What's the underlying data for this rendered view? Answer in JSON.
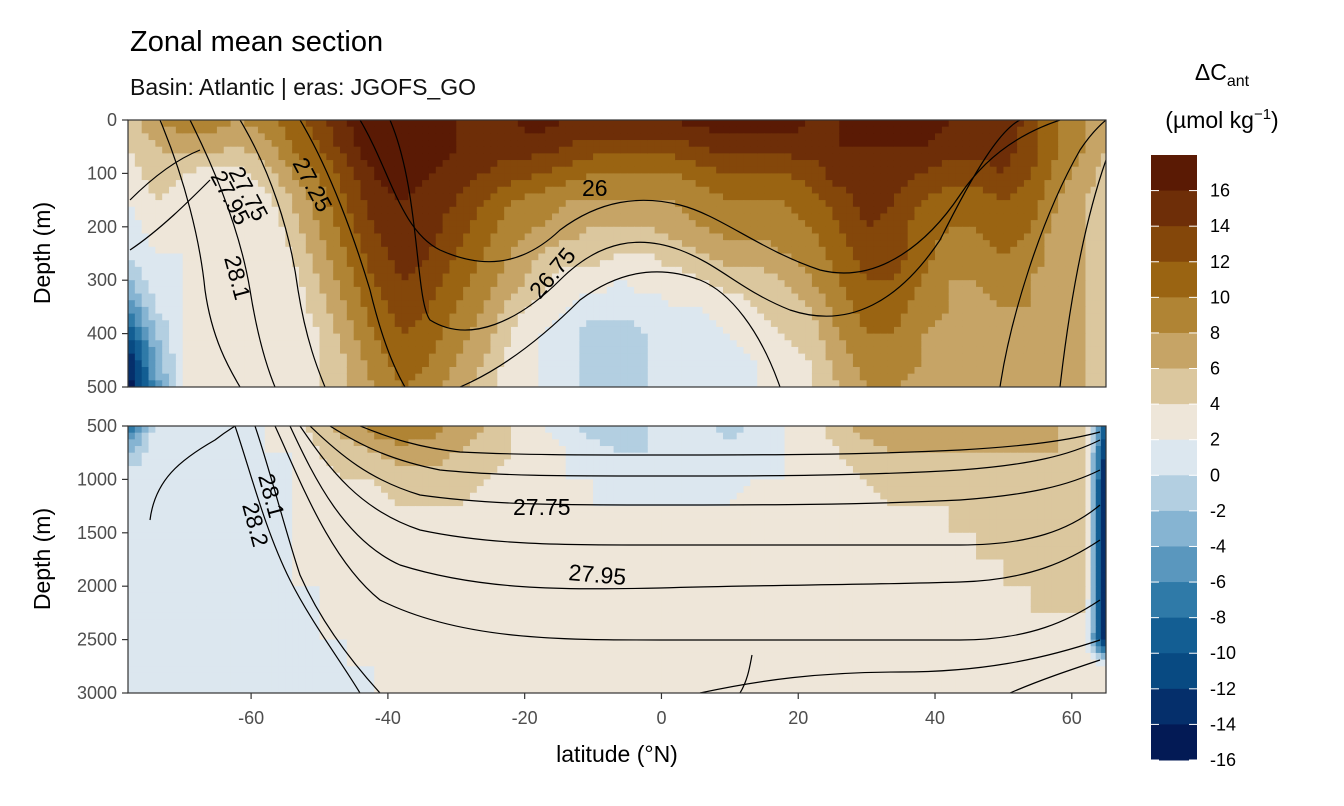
{
  "chart_data": {
    "type": "heatmap",
    "title": "Zonal mean section",
    "subtitle": "Basin: Atlantic | eras: JGOFS_GO",
    "xlabel": "latitude (°N)",
    "ylabel": "Depth (m)",
    "xlim": [
      -78,
      65
    ],
    "x_ticks": [
      -60,
      -40,
      -20,
      0,
      20,
      40,
      60
    ],
    "panels": [
      {
        "ylim": [
          0,
          500
        ],
        "y_ticks": [
          0,
          100,
          200,
          300,
          400,
          500
        ]
      },
      {
        "ylim": [
          500,
          3000
        ],
        "y_ticks": [
          500,
          1000,
          1500,
          2000,
          2500,
          3000
        ]
      }
    ],
    "legend": {
      "title": "ΔC",
      "title_sub": "ant",
      "unit_prefix": "(µmol kg",
      "unit_sup": "−1",
      "unit_suffix": ")",
      "labels": [
        "16",
        "14",
        "12",
        "10",
        "8",
        "6",
        "4",
        "2",
        "0",
        "-2",
        "-4",
        "-6",
        "-8",
        "-10",
        "-12",
        "-14",
        "-16"
      ],
      "colors": [
        "#5a1a04",
        "#6e2e08",
        "#84470a",
        "#9a6412",
        "#b08434",
        "#c6a466",
        "#dbc79e",
        "#eee6d9",
        "#dce7ef",
        "#b3cfe1",
        "#86b4d2",
        "#5a97be",
        "#2f7aa8",
        "#135e93",
        "#084a82",
        "#052f6b",
        "#031a55"
      ]
    },
    "isopycnal_labels": [
      "27.75",
      "27.95",
      "27.25",
      "26",
      "26.75",
      "28.1",
      "27.75",
      "27.95",
      "28.1",
      "28.2"
    ],
    "field_grid_top": {
      "lat": [
        -78,
        -74,
        -70,
        -66,
        -62,
        -58,
        -54,
        -50,
        -46,
        -42,
        -38,
        -34,
        -30,
        -26,
        -22,
        -18,
        -14,
        -10,
        -6,
        -2,
        2,
        6,
        10,
        14,
        18,
        22,
        26,
        30,
        34,
        38,
        42,
        46,
        50,
        54,
        58,
        62,
        65
      ],
      "depth": [
        0,
        50,
        100,
        150,
        200,
        250,
        300,
        350,
        400,
        450,
        500
      ],
      "values": [
        [
          5,
          8,
          9,
          9,
          8,
          9,
          11,
          13,
          16,
          18,
          18,
          17,
          16,
          16,
          16,
          17,
          16,
          16,
          16,
          16,
          16,
          17,
          17,
          17,
          17,
          16,
          16,
          16,
          17,
          17,
          16,
          16,
          16,
          13,
          10,
          8,
          7
        ],
        [
          4,
          6,
          7,
          7,
          6,
          7,
          10,
          12,
          15,
          18,
          18,
          17,
          16,
          15,
          15,
          15,
          14,
          13,
          13,
          13,
          13,
          14,
          15,
          15,
          15,
          15,
          16,
          16,
          16,
          16,
          15,
          15,
          15,
          13,
          10,
          8,
          6
        ],
        [
          3,
          5,
          4,
          3,
          3,
          5,
          8,
          10,
          13,
          16,
          17,
          16,
          15,
          14,
          13,
          12,
          11,
          10,
          10,
          10,
          10,
          11,
          12,
          12,
          12,
          13,
          15,
          16,
          15,
          14,
          13,
          13,
          14,
          12,
          9,
          7,
          5
        ],
        [
          2,
          4,
          3,
          2,
          2,
          3,
          6,
          9,
          12,
          15,
          16,
          15,
          14,
          12,
          10,
          9,
          8,
          8,
          8,
          8,
          8,
          9,
          10,
          10,
          10,
          11,
          13,
          15,
          14,
          12,
          11,
          11,
          12,
          11,
          8,
          6,
          5
        ],
        [
          1,
          3,
          2,
          2,
          2,
          2,
          5,
          8,
          11,
          14,
          16,
          15,
          13,
          11,
          9,
          8,
          7,
          6,
          6,
          6,
          7,
          8,
          9,
          9,
          9,
          10,
          12,
          14,
          13,
          11,
          10,
          10,
          11,
          10,
          7,
          6,
          5
        ],
        [
          0,
          2,
          2,
          2,
          2,
          2,
          4,
          7,
          10,
          13,
          15,
          14,
          12,
          10,
          8,
          6,
          5,
          5,
          4,
          4,
          5,
          6,
          7,
          7,
          8,
          9,
          11,
          13,
          13,
          11,
          9,
          9,
          10,
          9,
          7,
          6,
          5
        ],
        [
          -2,
          1,
          2,
          2,
          2,
          2,
          3,
          6,
          9,
          12,
          14,
          13,
          11,
          9,
          7,
          5,
          3,
          3,
          2,
          3,
          3,
          4,
          5,
          5,
          6,
          8,
          10,
          12,
          12,
          10,
          8,
          8,
          9,
          8,
          7,
          6,
          5
        ],
        [
          -6,
          0,
          2,
          2,
          2,
          2,
          3,
          5,
          8,
          11,
          13,
          12,
          10,
          8,
          5,
          3,
          2,
          1,
          1,
          1,
          2,
          2,
          3,
          4,
          5,
          6,
          9,
          11,
          11,
          9,
          8,
          7,
          8,
          8,
          7,
          6,
          5
        ],
        [
          -10,
          -2,
          2,
          2,
          2,
          2,
          2,
          4,
          7,
          10,
          12,
          11,
          9,
          7,
          4,
          2,
          1,
          -1,
          -1,
          0,
          1,
          1,
          2,
          3,
          4,
          5,
          8,
          10,
          10,
          8,
          7,
          7,
          7,
          7,
          6,
          6,
          5
        ],
        [
          -14,
          -4,
          2,
          2,
          2,
          2,
          2,
          4,
          6,
          9,
          11,
          10,
          8,
          6,
          3,
          2,
          1,
          -1,
          -1,
          0,
          0,
          1,
          1,
          2,
          3,
          4,
          7,
          9,
          9,
          8,
          7,
          7,
          7,
          7,
          6,
          6,
          5
        ],
        [
          -16,
          -5,
          2,
          2,
          2,
          2,
          2,
          4,
          6,
          8,
          10,
          9,
          7,
          5,
          3,
          2,
          1,
          -1,
          -1,
          0,
          0,
          0,
          1,
          2,
          3,
          4,
          6,
          8,
          8,
          7,
          7,
          6,
          7,
          7,
          6,
          6,
          5
        ]
      ]
    },
    "field_grid_bottom": {
      "lat": [
        -78,
        -74,
        -70,
        -66,
        -62,
        -58,
        -54,
        -50,
        -46,
        -42,
        -38,
        -34,
        -30,
        -26,
        -22,
        -18,
        -14,
        -10,
        -6,
        -2,
        2,
        6,
        10,
        14,
        18,
        22,
        26,
        30,
        34,
        38,
        42,
        46,
        50,
        54,
        58,
        62,
        65
      ],
      "depth": [
        500,
        750,
        1000,
        1250,
        1500,
        1750,
        2000,
        2250,
        2500,
        2750,
        3000
      ],
      "values": [
        [
          -8,
          1,
          1,
          1,
          2,
          2,
          3,
          5,
          7,
          9,
          10,
          9,
          7,
          6,
          4,
          2,
          1,
          -1,
          -2,
          0,
          1,
          1,
          -1,
          1,
          2,
          3,
          5,
          7,
          8,
          7,
          7,
          6,
          7,
          7,
          6,
          5,
          -10
        ],
        [
          -2,
          1,
          1,
          0,
          1,
          2,
          2,
          4,
          5,
          6,
          7,
          7,
          6,
          5,
          4,
          3,
          2,
          1,
          0,
          0,
          1,
          1,
          1,
          1,
          2,
          3,
          4,
          5,
          6,
          6,
          6,
          6,
          6,
          6,
          6,
          5,
          -14
        ],
        [
          1,
          1,
          0,
          0,
          0,
          1,
          2,
          3,
          4,
          4,
          5,
          5,
          5,
          4,
          3,
          3,
          2,
          2,
          1,
          1,
          1,
          1,
          1,
          2,
          2,
          3,
          3,
          4,
          5,
          5,
          5,
          5,
          5,
          5,
          5,
          5,
          -16
        ],
        [
          1,
          1,
          0,
          0,
          0,
          1,
          2,
          3,
          3,
          3,
          4,
          4,
          4,
          3,
          3,
          3,
          3,
          2,
          2,
          2,
          2,
          2,
          2,
          3,
          3,
          3,
          3,
          3,
          4,
          4,
          4,
          5,
          5,
          5,
          5,
          5,
          -16
        ],
        [
          1,
          1,
          0,
          0,
          0,
          1,
          2,
          3,
          3,
          3,
          3,
          3,
          3,
          3,
          3,
          3,
          3,
          3,
          3,
          3,
          3,
          3,
          3,
          3,
          3,
          3,
          3,
          3,
          3,
          3,
          4,
          4,
          5,
          5,
          5,
          5,
          -16
        ],
        [
          1,
          1,
          0,
          0,
          0,
          1,
          2,
          2,
          3,
          3,
          3,
          3,
          3,
          3,
          3,
          3,
          3,
          3,
          3,
          3,
          3,
          3,
          3,
          3,
          3,
          3,
          3,
          3,
          3,
          3,
          3,
          4,
          4,
          5,
          5,
          5,
          -16
        ],
        [
          1,
          1,
          0,
          0,
          0,
          1,
          2,
          2,
          3,
          3,
          3,
          3,
          3,
          3,
          3,
          3,
          3,
          3,
          3,
          3,
          3,
          3,
          3,
          3,
          2,
          2,
          2,
          2,
          2,
          3,
          3,
          3,
          4,
          4,
          5,
          5,
          -16
        ],
        [
          1,
          1,
          0,
          0,
          0,
          1,
          1,
          2,
          2,
          3,
          3,
          3,
          3,
          3,
          3,
          3,
          3,
          3,
          3,
          3,
          3,
          3,
          3,
          3,
          2,
          2,
          2,
          2,
          2,
          3,
          3,
          3,
          3,
          4,
          4,
          4,
          -16
        ],
        [
          1,
          1,
          1,
          0,
          0,
          1,
          1,
          2,
          2,
          2,
          3,
          3,
          3,
          3,
          3,
          3,
          3,
          3,
          3,
          3,
          3,
          3,
          3,
          3,
          3,
          3,
          3,
          3,
          3,
          3,
          3,
          3,
          3,
          3,
          3,
          3,
          -16
        ],
        [
          1,
          1,
          1,
          1,
          1,
          1,
          1,
          1,
          2,
          2,
          2,
          3,
          3,
          3,
          3,
          3,
          3,
          3,
          3,
          3,
          3,
          3,
          3,
          3,
          3,
          3,
          3,
          3,
          3,
          3,
          3,
          3,
          3,
          3,
          3,
          3,
          3
        ],
        [
          1,
          1,
          1,
          1,
          1,
          1,
          1,
          1,
          1,
          2,
          2,
          3,
          3,
          3,
          3,
          3,
          3,
          3,
          3,
          3,
          3,
          3,
          3,
          3,
          3,
          3,
          3,
          3,
          3,
          3,
          3,
          3,
          3,
          3,
          3,
          3,
          3
        ]
      ]
    }
  }
}
